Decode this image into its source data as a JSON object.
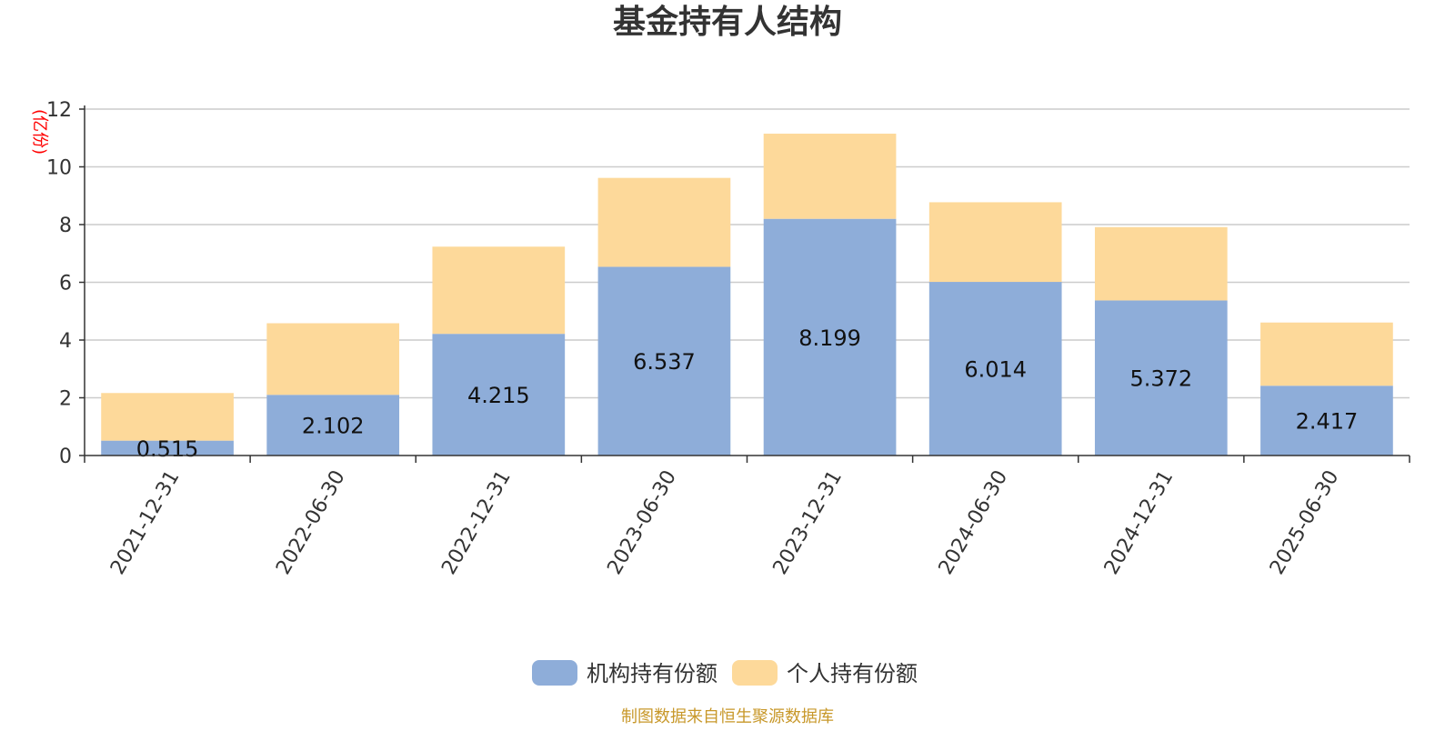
{
  "chart_data": {
    "type": "bar",
    "stacked": true,
    "title": "基金持有人结构",
    "unit_label": "(亿份)",
    "xlabel": "",
    "ylabel": "",
    "ylim": [
      0,
      12
    ],
    "yticks": [
      0,
      2,
      4,
      6,
      8,
      10,
      12
    ],
    "grid": true,
    "legend_position": "bottom-center",
    "categories": [
      "2021-12-31",
      "2022-06-30",
      "2022-12-31",
      "2023-06-30",
      "2023-12-31",
      "2024-06-30",
      "2024-12-31",
      "2025-06-30"
    ],
    "series": [
      {
        "name": "机构持有份额",
        "color": "#8eadd9",
        "values": [
          0.515,
          2.102,
          4.215,
          6.537,
          8.199,
          6.014,
          5.372,
          2.417
        ],
        "labels": [
          "0.515",
          "2.102",
          "4.215",
          "6.537",
          "8.199",
          "6.014",
          "5.372",
          "2.417"
        ]
      },
      {
        "name": "个人持有份额",
        "color": "#fdd99a",
        "values": [
          1.65,
          2.48,
          3.02,
          3.08,
          2.95,
          2.76,
          2.54,
          2.19
        ]
      }
    ]
  },
  "footer": {
    "source": "制图数据来自恒生聚源数据库"
  },
  "colors": {
    "axis": "#333333",
    "grid": "#cccccc",
    "unit_label": "#ff0000",
    "source": "#c8982a"
  }
}
